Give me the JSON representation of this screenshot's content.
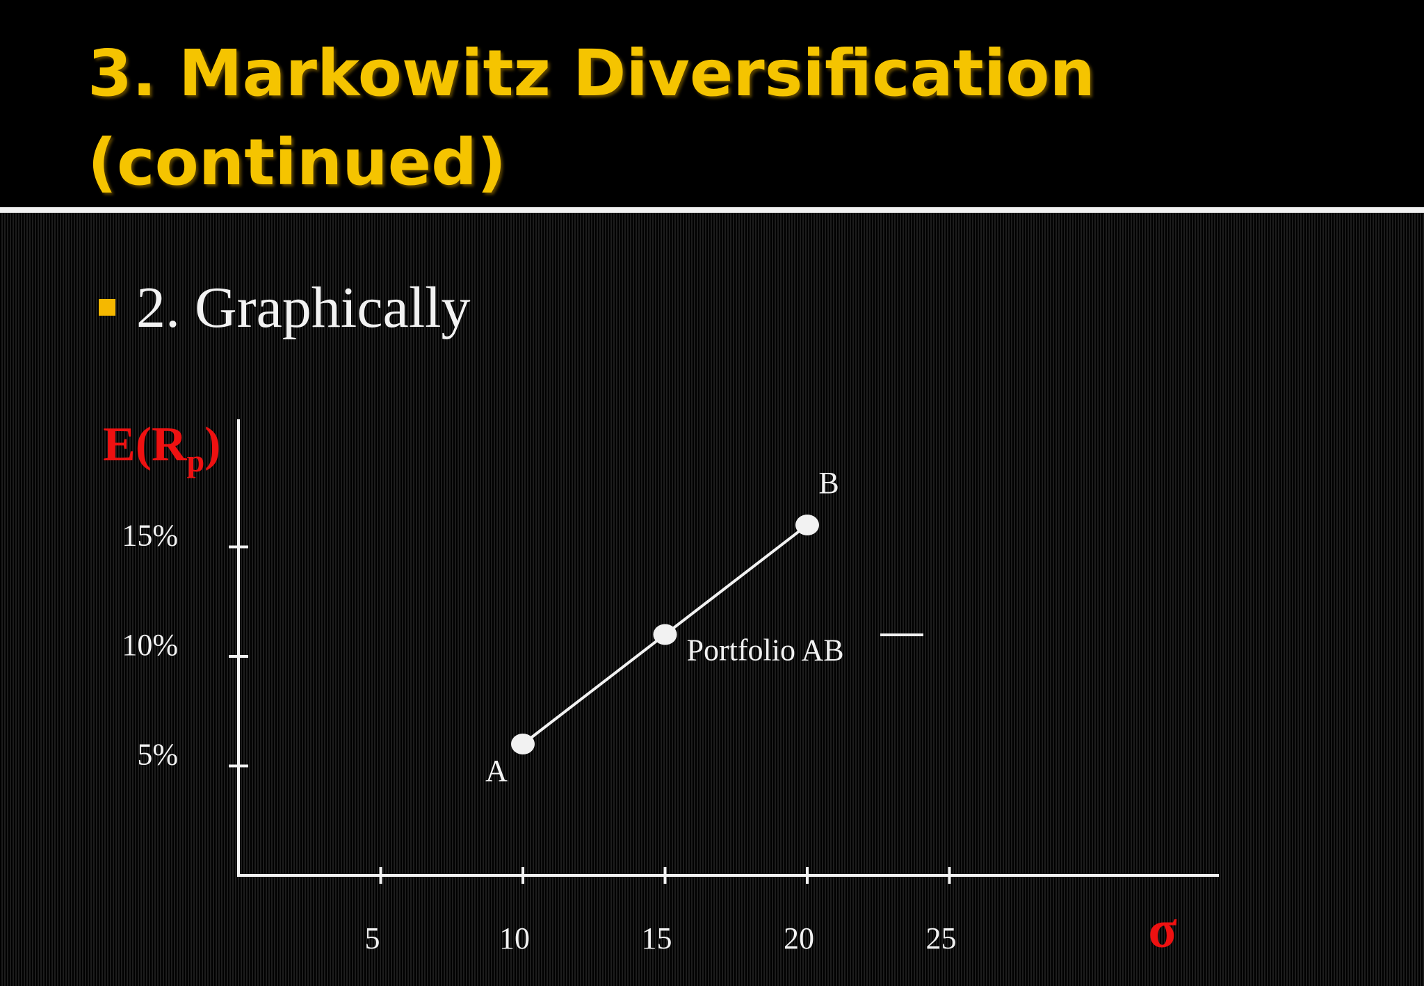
{
  "slide": {
    "title_line1": "3.  Markowitz Diversification",
    "title_line2": "(continued)",
    "bullet_text": "2.  Graphically"
  },
  "colors": {
    "title": "#f5c400",
    "bullet": "#f5b800",
    "axis_label": "#ee1111",
    "foreground": "#f2f2f2"
  },
  "chart_data": {
    "type": "line",
    "x_axis": {
      "label": "σ",
      "ticks": [
        5,
        10,
        15,
        20,
        25
      ],
      "tick_labels": [
        "5",
        "10",
        "15",
        "20",
        "25"
      ],
      "range": [
        0,
        40
      ]
    },
    "y_axis": {
      "label_main": "E(R",
      "label_sub": "p",
      "label_close": ")",
      "ticks": [
        5,
        10,
        15
      ],
      "tick_labels": [
        "5%",
        "10%",
        "15%"
      ],
      "range": [
        0,
        20
      ]
    },
    "points": [
      {
        "label": "A",
        "x": 10,
        "y": 6
      },
      {
        "label": "Portfolio AB",
        "x": 15,
        "y": 11
      },
      {
        "label": "B",
        "x": 20,
        "y": 16
      }
    ],
    "grid": false,
    "legend_line": true
  }
}
